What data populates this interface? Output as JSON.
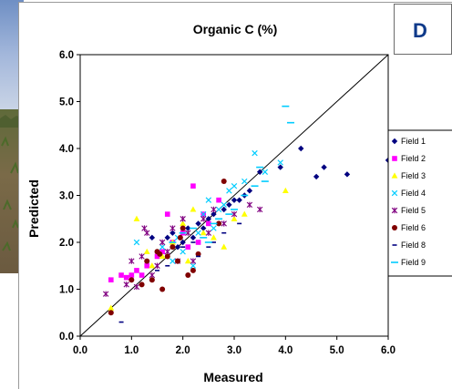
{
  "panel_label": "D",
  "chart_data": {
    "type": "scatter",
    "title": "Organic C (%)",
    "xlabel": "Measured",
    "ylabel": "Predicted",
    "xlim": [
      0,
      6
    ],
    "ylim": [
      0,
      6
    ],
    "x_ticks": [
      "0.0",
      "1.0",
      "2.0",
      "3.0",
      "4.0",
      "5.0",
      "6.0"
    ],
    "y_ticks": [
      "0.0",
      "1.0",
      "2.0",
      "3.0",
      "4.0",
      "5.0",
      "6.0"
    ],
    "grid": false,
    "legend_position": "right",
    "reference_line": {
      "type": "1:1",
      "from": [
        0,
        0
      ],
      "to": [
        6,
        6
      ]
    },
    "series": [
      {
        "name": "Field 1",
        "marker": "diamond",
        "color": "#000080",
        "points": [
          [
            1.4,
            2.1
          ],
          [
            1.7,
            2.1
          ],
          [
            1.9,
            1.9
          ],
          [
            2.0,
            2.0
          ],
          [
            2.2,
            2.1
          ],
          [
            2.4,
            2.3
          ],
          [
            2.5,
            2.5
          ],
          [
            2.6,
            2.6
          ],
          [
            2.8,
            2.7
          ],
          [
            2.9,
            2.8
          ],
          [
            3.0,
            2.9
          ],
          [
            3.1,
            2.9
          ],
          [
            3.2,
            3.0
          ],
          [
            3.3,
            3.1
          ],
          [
            3.5,
            3.5
          ],
          [
            3.9,
            3.6
          ],
          [
            4.3,
            4.0
          ],
          [
            4.6,
            3.4
          ],
          [
            4.75,
            3.6
          ],
          [
            5.2,
            3.45
          ],
          [
            6.0,
            3.75
          ],
          [
            2.1,
            2.3
          ],
          [
            1.8,
            2.2
          ],
          [
            2.3,
            2.4
          ]
        ]
      },
      {
        "name": "Field 2",
        "marker": "square",
        "color": "#ff00ff",
        "points": [
          [
            0.6,
            1.2
          ],
          [
            0.8,
            1.3
          ],
          [
            0.9,
            1.25
          ],
          [
            1.0,
            1.3
          ],
          [
            1.1,
            1.4
          ],
          [
            1.3,
            1.5
          ],
          [
            1.2,
            1.3
          ],
          [
            1.5,
            1.7
          ],
          [
            1.7,
            2.6
          ],
          [
            1.8,
            2.0
          ],
          [
            2.0,
            2.2
          ],
          [
            2.1,
            1.9
          ],
          [
            2.2,
            3.2
          ],
          [
            2.3,
            2.0
          ],
          [
            2.5,
            2.4
          ],
          [
            2.7,
            2.9
          ],
          [
            1.6,
            1.8
          ],
          [
            2.4,
            2.6
          ]
        ]
      },
      {
        "name": "Field 3",
        "marker": "triangle",
        "color": "#ffff00",
        "points": [
          [
            0.6,
            0.6
          ],
          [
            1.1,
            2.5
          ],
          [
            1.3,
            1.8
          ],
          [
            1.4,
            1.5
          ],
          [
            1.8,
            2.0
          ],
          [
            2.0,
            2.4
          ],
          [
            2.2,
            2.7
          ],
          [
            2.4,
            2.2
          ],
          [
            2.6,
            2.1
          ],
          [
            2.8,
            1.9
          ],
          [
            3.0,
            2.5
          ],
          [
            3.2,
            2.6
          ],
          [
            4.0,
            3.1
          ],
          [
            1.6,
            1.7
          ],
          [
            2.1,
            1.6
          ]
        ]
      },
      {
        "name": "Field 4",
        "marker": "x",
        "color": "#00ccff",
        "points": [
          [
            1.1,
            2.0
          ],
          [
            1.6,
            1.9
          ],
          [
            1.8,
            1.6
          ],
          [
            2.0,
            1.8
          ],
          [
            2.2,
            1.5
          ],
          [
            2.4,
            2.6
          ],
          [
            2.5,
            2.9
          ],
          [
            2.6,
            2.3
          ],
          [
            2.7,
            2.7
          ],
          [
            2.8,
            2.8
          ],
          [
            3.0,
            3.2
          ],
          [
            3.2,
            3.3
          ],
          [
            3.4,
            3.9
          ],
          [
            3.6,
            3.5
          ],
          [
            3.9,
            3.7
          ],
          [
            2.3,
            2.2
          ],
          [
            2.9,
            3.1
          ],
          [
            1.9,
            2.1
          ]
        ]
      },
      {
        "name": "Field 5",
        "marker": "star",
        "color": "#800080",
        "points": [
          [
            0.5,
            0.9
          ],
          [
            0.9,
            1.1
          ],
          [
            1.0,
            1.6
          ],
          [
            1.1,
            1.05
          ],
          [
            1.2,
            1.7
          ],
          [
            1.3,
            2.2
          ],
          [
            1.4,
            1.3
          ],
          [
            1.5,
            1.5
          ],
          [
            1.6,
            2.0
          ],
          [
            1.7,
            1.8
          ],
          [
            1.8,
            2.3
          ],
          [
            1.9,
            1.6
          ],
          [
            2.0,
            2.5
          ],
          [
            2.1,
            2.2
          ],
          [
            2.2,
            1.6
          ],
          [
            2.4,
            2.5
          ],
          [
            2.6,
            2.7
          ],
          [
            2.8,
            2.4
          ],
          [
            3.0,
            2.6
          ],
          [
            3.3,
            2.8
          ],
          [
            3.5,
            2.7
          ],
          [
            1.25,
            2.3
          ],
          [
            2.5,
            2.2
          ]
        ]
      },
      {
        "name": "Field 6",
        "marker": "circle",
        "color": "#800000",
        "points": [
          [
            0.6,
            0.5
          ],
          [
            1.0,
            1.2
          ],
          [
            1.2,
            1.1
          ],
          [
            1.3,
            1.6
          ],
          [
            1.4,
            1.2
          ],
          [
            1.5,
            1.8
          ],
          [
            1.6,
            1.0
          ],
          [
            1.7,
            1.7
          ],
          [
            1.8,
            1.9
          ],
          [
            1.9,
            1.6
          ],
          [
            2.0,
            2.3
          ],
          [
            2.1,
            1.3
          ],
          [
            2.2,
            1.4
          ],
          [
            2.3,
            1.75
          ],
          [
            2.7,
            2.4
          ],
          [
            2.8,
            3.3
          ],
          [
            1.95,
            2.1
          ],
          [
            1.55,
            1.75
          ]
        ]
      },
      {
        "name": "Field 8",
        "marker": "dash",
        "color": "#000080",
        "points": [
          [
            0.8,
            0.3
          ],
          [
            1.5,
            1.4
          ],
          [
            1.7,
            1.5
          ],
          [
            2.0,
            1.9
          ],
          [
            2.2,
            2.0
          ],
          [
            2.3,
            1.7
          ],
          [
            2.6,
            2.0
          ],
          [
            2.8,
            2.2
          ],
          [
            3.1,
            2.4
          ],
          [
            2.5,
            1.9
          ]
        ]
      },
      {
        "name": "Field 9",
        "marker": "longdash",
        "color": "#00ccff",
        "points": [
          [
            1.8,
            2.0
          ],
          [
            2.0,
            2.2
          ],
          [
            2.2,
            2.3
          ],
          [
            2.4,
            2.1
          ],
          [
            2.5,
            2.0
          ],
          [
            2.7,
            2.5
          ],
          [
            2.9,
            2.6
          ],
          [
            3.0,
            2.7
          ],
          [
            3.2,
            3.0
          ],
          [
            3.4,
            3.2
          ],
          [
            3.6,
            3.3
          ],
          [
            4.0,
            4.9
          ],
          [
            4.1,
            4.55
          ],
          [
            2.6,
            2.4
          ],
          [
            3.5,
            3.6
          ]
        ]
      }
    ]
  }
}
